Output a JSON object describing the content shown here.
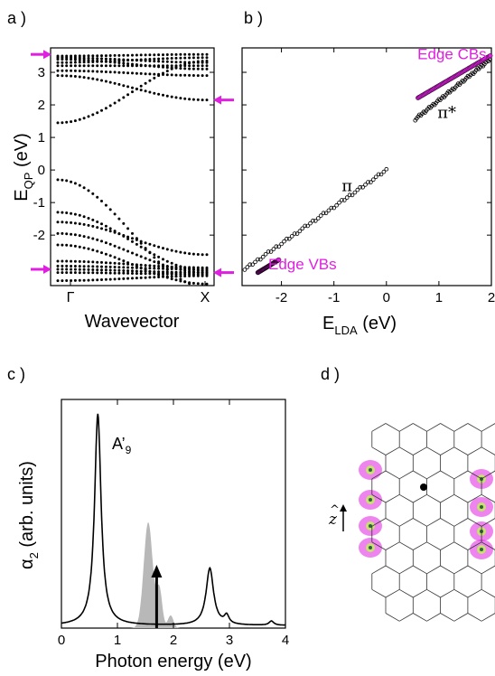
{
  "panel_labels": {
    "a": "a )",
    "b": "b )",
    "c": "c )",
    "d": "d )"
  },
  "colors": {
    "accent": "#e020e0",
    "filled": "#b8b8b8",
    "ink": "#000000"
  },
  "chart_data": [
    {
      "panel": "a",
      "type": "scatter",
      "subtype": "band structure",
      "xlabel": "Wavevector",
      "ylabel_main": "E",
      "ylabel_sub": "QP",
      "ylabel_unit": " (eV)",
      "x_ticks": [
        "Γ",
        "X"
      ],
      "y_ticks": [
        -2,
        -1,
        0,
        1,
        2,
        3
      ],
      "ylim": [
        -3.55,
        3.75
      ],
      "arrows_left": [
        3.55,
        -3.05
      ],
      "arrows_right": [
        2.15,
        -3.15
      ],
      "bands_k0_k1": [
        [
          3.5,
          3.55
        ],
        [
          3.45,
          3.3
        ],
        [
          3.4,
          3.1
        ],
        [
          3.3,
          3.45
        ],
        [
          3.2,
          3.2
        ],
        [
          3.05,
          2.9
        ],
        [
          2.9,
          2.15
        ],
        [
          1.45,
          3.35
        ],
        [
          -1.3,
          -3.1
        ],
        [
          -1.6,
          -2.6
        ],
        [
          -1.95,
          -3.15
        ],
        [
          -2.3,
          -3.5
        ],
        [
          -2.8,
          -3.0
        ],
        [
          -2.95,
          -3.05
        ],
        [
          -3.05,
          -3.15
        ],
        [
          -3.15,
          -3.2
        ],
        [
          -3.4,
          -3.25
        ],
        [
          -0.3,
          -3.6
        ]
      ]
    },
    {
      "panel": "b",
      "type": "scatter",
      "xlabel_main": "E",
      "xlabel_sub": "LDA",
      "xlabel_unit": " (eV)",
      "xlim": [
        -2.75,
        2.0
      ],
      "ylim": [
        -3.55,
        3.75
      ],
      "x_ticks": [
        -2,
        -1,
        0,
        1,
        2
      ],
      "annotations": [
        {
          "text": "Edge CBs",
          "x": 1.25,
          "y": 3.4,
          "color": "#e020e0"
        },
        {
          "text": "Edge VBs",
          "x": -1.6,
          "y": -3.05,
          "color": "#e020e0"
        },
        {
          "text": "π",
          "x": -0.75,
          "y": -0.65,
          "color": "#000000"
        },
        {
          "text": "π*",
          "x": 1.15,
          "y": 1.6,
          "color": "#000000"
        }
      ],
      "series": [
        {
          "role": "pi",
          "x_range": [
            -2.75,
            0.0
          ],
          "intercept": 0.0,
          "slope": 1.13
        },
        {
          "role": "pi_star",
          "x_range": [
            0.55,
            2.0
          ],
          "intercept": 0.85,
          "slope": 1.29
        },
        {
          "role": "edge_cb",
          "x_range": [
            0.6,
            2.0
          ],
          "intercept": 1.65,
          "slope": 0.94
        },
        {
          "role": "edge_vb",
          "x_range": [
            -2.45,
            -2.05
          ],
          "intercept": -0.75,
          "slope": 0.98
        }
      ]
    },
    {
      "panel": "c",
      "type": "line",
      "ylabel_main": "α",
      "ylabel_sub": "2",
      "ylabel_unit": " (arb. units)",
      "xlabel": "Photon energy (eV)",
      "xlim": [
        0,
        4
      ],
      "ylim": [
        0,
        1.08
      ],
      "x_ticks": [
        0,
        1,
        2,
        3,
        4
      ],
      "peak_label_main": "A’",
      "peak_label_sub": "9",
      "arrow_x": 1.7,
      "line_peaks": [
        {
          "center": 0.65,
          "width": 0.07,
          "height": 1.0
        },
        {
          "center": 2.65,
          "width": 0.08,
          "height": 0.27
        },
        {
          "center": 2.95,
          "width": 0.05,
          "height": 0.04
        },
        {
          "center": 3.75,
          "width": 0.05,
          "height": 0.02
        }
      ],
      "filled_peaks": [
        {
          "center": 1.55,
          "width": 0.08,
          "height": 0.5
        },
        {
          "center": 1.75,
          "width": 0.05,
          "height": 0.18
        },
        {
          "center": 1.95,
          "width": 0.05,
          "height": 0.06
        }
      ]
    },
    {
      "panel": "d",
      "type": "diagram",
      "axis_label": "z",
      "lattice_cols": 5,
      "lattice_rows": 6
    }
  ]
}
